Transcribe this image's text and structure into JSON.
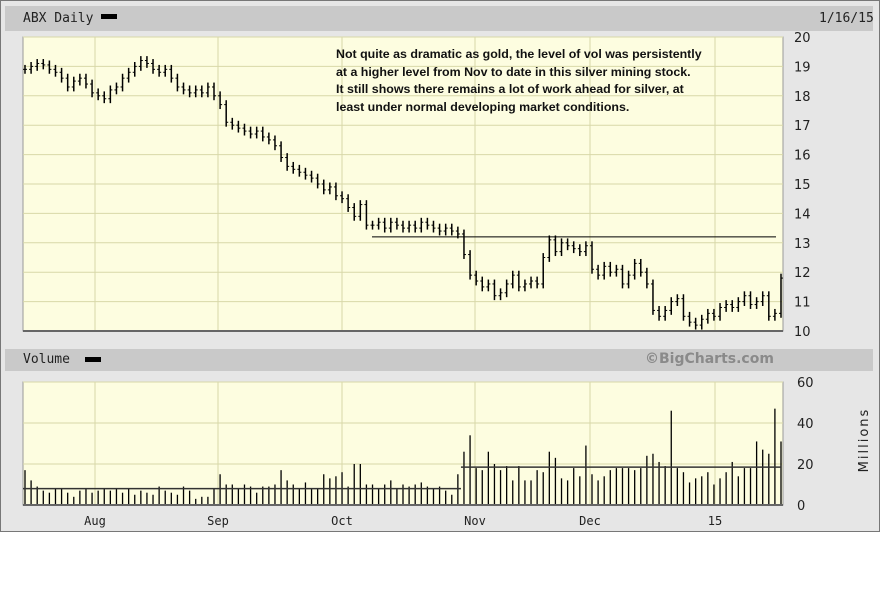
{
  "header": {
    "title": "ABX Daily",
    "date": "1/16/15"
  },
  "volume_header": {
    "title": "Volume",
    "credit": "©BigCharts.com"
  },
  "annotation": [
    "Not quite as dramatic as gold, the level of vol was persistently",
    "at a higher level from Nov to date in this silver mining stock.",
    "It still shows there remains a lot of work ahead for silver, at",
    "least under normal developing market conditions."
  ],
  "colors": {
    "plot_bg": "#fdfde0",
    "grid": "#d8d8a8",
    "bars": "#000000"
  },
  "chart_data": [
    {
      "type": "ohlc",
      "title": "ABX Daily",
      "ylim": [
        10,
        20
      ],
      "yticks": [
        20,
        19,
        18,
        17,
        16,
        15,
        14,
        13,
        12,
        11,
        10
      ],
      "grid": true,
      "xticks": [
        "Aug",
        "Sep",
        "Oct",
        "Nov",
        "Dec",
        "15"
      ],
      "resistance_line": 13.2,
      "close": [
        18.9,
        19.0,
        19.1,
        19.05,
        18.9,
        18.8,
        18.6,
        18.3,
        18.5,
        18.6,
        18.4,
        18.1,
        18.0,
        17.9,
        18.2,
        18.3,
        18.6,
        18.8,
        19.0,
        19.2,
        19.1,
        18.9,
        18.8,
        18.9,
        18.6,
        18.3,
        18.2,
        18.1,
        18.2,
        18.1,
        18.3,
        18.0,
        17.7,
        17.1,
        17.0,
        16.9,
        16.8,
        16.7,
        16.8,
        16.6,
        16.5,
        16.3,
        15.9,
        15.6,
        15.5,
        15.4,
        15.3,
        15.2,
        15.0,
        14.8,
        14.9,
        14.6,
        14.5,
        14.2,
        13.9,
        14.3,
        13.6,
        13.6,
        13.7,
        13.5,
        13.7,
        13.6,
        13.5,
        13.6,
        13.5,
        13.7,
        13.6,
        13.5,
        13.4,
        13.5,
        13.4,
        13.3,
        12.6,
        11.9,
        11.7,
        11.5,
        11.6,
        11.2,
        11.3,
        11.6,
        11.9,
        11.5,
        11.6,
        11.7,
        11.6,
        12.5,
        13.1,
        12.7,
        13.0,
        12.9,
        12.8,
        12.7,
        12.9,
        12.1,
        11.9,
        12.2,
        12.0,
        12.1,
        11.6,
        11.9,
        12.3,
        12.0,
        11.6,
        10.7,
        10.5,
        10.7,
        11.0,
        11.1,
        10.5,
        10.3,
        10.2,
        10.4,
        10.6,
        10.5,
        10.8,
        10.9,
        10.8,
        11.0,
        11.2,
        10.9,
        11.0,
        11.2,
        10.5,
        10.6,
        11.8
      ]
    },
    {
      "type": "bar",
      "title": "Volume",
      "ylabel": "Millions",
      "ylim": [
        0,
        60
      ],
      "yticks": [
        60,
        40,
        20,
        0
      ],
      "grid": true,
      "xticks": [
        "Aug",
        "Sep",
        "Oct",
        "Nov",
        "Dec",
        "15"
      ],
      "average_lines": [
        {
          "period": "Jul-Oct",
          "value": 8
        },
        {
          "period": "Nov-Jan",
          "value": 18.5
        }
      ],
      "values": [
        17,
        12,
        9,
        7,
        6,
        8,
        8,
        6,
        4,
        7,
        8,
        6,
        7,
        8,
        7,
        8,
        6,
        8,
        5,
        7,
        6,
        5,
        9,
        7,
        6,
        5,
        9,
        7,
        3,
        4,
        4,
        8,
        15,
        10,
        10,
        8,
        10,
        9,
        6,
        9,
        9,
        10,
        17,
        12,
        10,
        8,
        11,
        8,
        8,
        15,
        13,
        14,
        16,
        9,
        20,
        20,
        10,
        10,
        8,
        10,
        12,
        8,
        10,
        9,
        10,
        11,
        9,
        8,
        9,
        7,
        5,
        15,
        26,
        34,
        18,
        17,
        26,
        20,
        17,
        19,
        12,
        19,
        12,
        12,
        17,
        16,
        26,
        23,
        13,
        12,
        18,
        14,
        29,
        15,
        12,
        14,
        17,
        18,
        18,
        18,
        17,
        18,
        24,
        25,
        21,
        19,
        46,
        18,
        16,
        11,
        13,
        14,
        16,
        10,
        13,
        16,
        21,
        14,
        18,
        18,
        31,
        27,
        25,
        47,
        31
      ]
    }
  ]
}
